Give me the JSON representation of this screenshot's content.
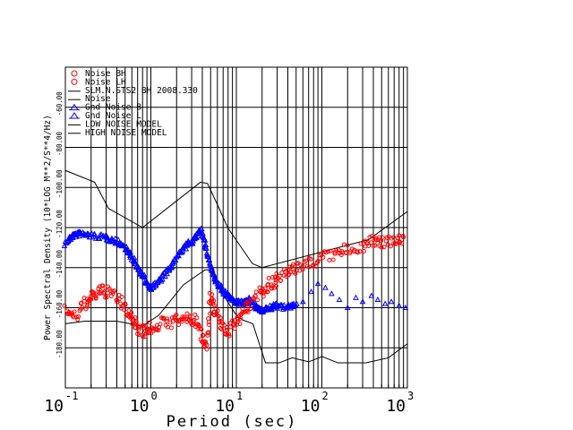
{
  "chart_data": {
    "type": "scatter",
    "xlabel": "Period (sec)",
    "ylabel": "Power Spectral Density (10*LOG M**2/S**4/Hz)",
    "xscale": "log",
    "xlim": [
      0.1,
      1000
    ],
    "ylim": [
      -200,
      -40
    ],
    "grid": true,
    "legend_placement": "top-left",
    "x_ticks": [
      {
        "base": "10",
        "exp": "-1",
        "v": 0.1
      },
      {
        "base": "10",
        "exp": "0",
        "v": 1
      },
      {
        "base": "10",
        "exp": "1",
        "v": 10
      },
      {
        "base": "10",
        "exp": "2",
        "v": 100
      },
      {
        "base": "10",
        "exp": "3",
        "v": 1000
      }
    ],
    "y_ticks": [
      {
        "label": "-60.00",
        "v": -60
      },
      {
        "label": "-80.00",
        "v": -80
      },
      {
        "label": "-100.00",
        "v": -100
      },
      {
        "label": "-120.00",
        "v": -120
      },
      {
        "label": "-140.00",
        "v": -140
      },
      {
        "label": "-160.00",
        "v": -160
      },
      {
        "label": "-180.00",
        "v": -180
      }
    ],
    "legend": [
      {
        "label": "Noise BH",
        "symbol": "circle",
        "color": "#ff0000"
      },
      {
        "label": "Noise LH",
        "symbol": "circle",
        "color": "#ff0000"
      },
      {
        "label": "SLM.N.STS2 BH  2008.330",
        "symbol": "line",
        "color": "#000000"
      },
      {
        "label": "Noise",
        "symbol": "line",
        "color": "#000000"
      },
      {
        "label": "Gnd Noise B",
        "symbol": "triangle",
        "color": "#0000ff"
      },
      {
        "label": "Gnd Noise L",
        "symbol": "triangle",
        "color": "#0000ff"
      },
      {
        "label": "LOW NOISE MODEL",
        "symbol": "line",
        "color": "#000000"
      },
      {
        "label": "HIGH NOISE MODEL",
        "symbol": "line",
        "color": "#000000"
      }
    ],
    "series": [
      {
        "name": "LOW NOISE MODEL",
        "kind": "line",
        "color": "#000000",
        "x": [
          0.1,
          0.17,
          0.4,
          0.8,
          1.24,
          2.4,
          4.3,
          5.0,
          6.0,
          10,
          12,
          15.6,
          21.9,
          31.6,
          45,
          70,
          101,
          154,
          328,
          600,
          1000
        ],
        "y": [
          -168,
          -166.7,
          -166.7,
          -169.2,
          -163.7,
          -148.6,
          -141.1,
          -141.1,
          -149,
          -163.8,
          -166.2,
          -168,
          -187.5,
          -187.5,
          -185,
          -187,
          -184.4,
          -187.5,
          -187.5,
          -185,
          -178
        ]
      },
      {
        "name": "HIGH NOISE MODEL",
        "kind": "line",
        "color": "#000000",
        "x": [
          0.1,
          0.22,
          0.32,
          0.8,
          3.8,
          4.6,
          6.3,
          7.9,
          15.4,
          20,
          354,
          1000
        ],
        "y": [
          -91.5,
          -97.4,
          -110.5,
          -120,
          -97.4,
          -98,
          -110.5,
          -120,
          -138,
          -140,
          -126,
          -112
        ]
      },
      {
        "name": "Gnd Noise B",
        "kind": "triangle",
        "color": "#0000ff",
        "x": [
          0.1,
          0.12,
          0.15,
          0.2,
          0.3,
          0.4,
          0.5,
          0.6,
          0.7,
          0.85,
          1.0,
          1.3,
          1.7,
          2.2,
          2.8,
          3.4,
          3.9,
          4.5,
          5.2,
          6,
          7,
          8.5,
          10,
          12,
          14,
          17,
          20,
          25,
          30,
          40,
          50
        ],
        "y": [
          -128,
          -124,
          -123,
          -124,
          -125,
          -127,
          -130,
          -135,
          -140,
          -146,
          -150,
          -146,
          -140,
          -132,
          -128,
          -125,
          -121,
          -132,
          -142,
          -148,
          -152,
          -155,
          -157,
          -158,
          -156,
          -160,
          -161,
          -160,
          -159,
          -160,
          -158
        ]
      },
      {
        "name": "Gnd Noise L",
        "kind": "triangle",
        "color": "#0000ff",
        "x": [
          60,
          75,
          90,
          110,
          130,
          160,
          200,
          250,
          300,
          380,
          450,
          550,
          650,
          800,
          950
        ],
        "y": [
          -157,
          -152,
          -148,
          -150,
          -153,
          -156,
          -160,
          -155,
          -157,
          -154,
          -156,
          -158,
          -157,
          -159,
          -160
        ]
      },
      {
        "name": "Noise BH",
        "kind": "circle",
        "color": "#ff0000",
        "x": [
          0.1,
          0.13,
          0.17,
          0.2,
          0.25,
          0.3,
          0.4,
          0.5,
          0.6,
          0.7,
          0.85,
          1.0,
          1.3,
          1.7,
          2.2,
          2.8,
          3.4,
          4.0,
          4.5,
          5.0,
          5.5,
          6.5,
          8,
          10,
          12,
          15,
          20
        ],
        "y": [
          -160,
          -165,
          -158,
          -155,
          -152,
          -152,
          -155,
          -160,
          -165,
          -170,
          -172,
          -170,
          -168,
          -167,
          -166,
          -165,
          -167,
          -175,
          -178,
          -155,
          -160,
          -168,
          -172,
          -167,
          -162,
          -158,
          -150
        ]
      },
      {
        "name": "Noise LH",
        "kind": "circle",
        "color": "#ff0000",
        "x": [
          20,
          25,
          30,
          40,
          50,
          70,
          100,
          150,
          200,
          300,
          400,
          500,
          700,
          900
        ],
        "y": [
          -152,
          -148,
          -146,
          -143,
          -140,
          -138,
          -135,
          -133,
          -131,
          -129,
          -127,
          -127,
          -126,
          -126
        ]
      }
    ]
  }
}
